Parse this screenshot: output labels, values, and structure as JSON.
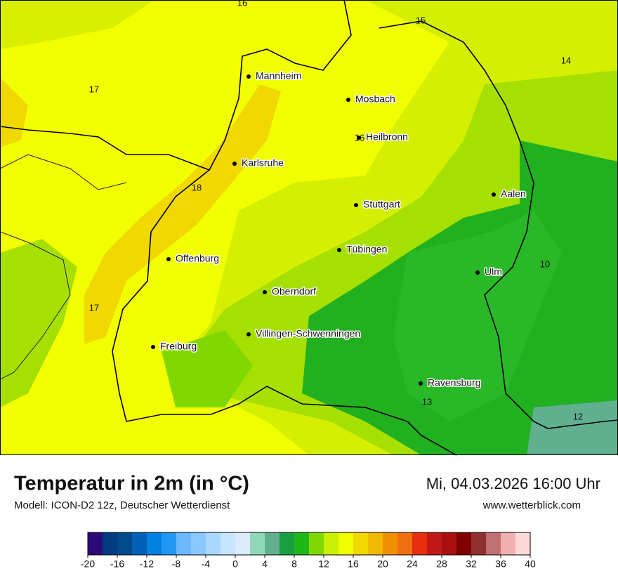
{
  "map": {
    "cities": [
      "Mannheim",
      "Mosbach",
      "Heilbronn",
      "Karlsruhe",
      "Aalen",
      "Stuttgart",
      "Tübingen",
      "Offenburg",
      "Ulm",
      "Oberndorf",
      "Villingen-Schwenningen",
      "Freiburg",
      "Ravensburg"
    ],
    "contour_labels": [
      16,
      15,
      14,
      17,
      16,
      18,
      17,
      10,
      13,
      12
    ]
  },
  "header": {
    "title": "Temperatur in 2m (in °C)",
    "model": "Modell: ICON-D2 12z, Deutscher Wetterdienst",
    "datetime": "Mi, 04.03.2026 16:00 Uhr",
    "website": "www.wetterblick.com"
  },
  "legend": {
    "ticks": [
      -20,
      -16,
      -12,
      -8,
      -4,
      0,
      4,
      8,
      12,
      16,
      20,
      24,
      28,
      32,
      36,
      40
    ],
    "colors": [
      "#2d0a7a",
      "#003a80",
      "#004a8c",
      "#0060b8",
      "#0080e0",
      "#2196f3",
      "#6ab8ff",
      "#88c8ff",
      "#a8d8ff",
      "#c8e4ff",
      "#dcecff",
      "#90d8b8",
      "#60b090",
      "#18a040",
      "#20b818",
      "#80d800",
      "#c8f000",
      "#f0ff00",
      "#f0d800",
      "#f0b800",
      "#f09000",
      "#f07010",
      "#e83010",
      "#c01818",
      "#a81010",
      "#800000",
      "#903030",
      "#c07070",
      "#f0b0b0",
      "#ffd8d8"
    ]
  }
}
